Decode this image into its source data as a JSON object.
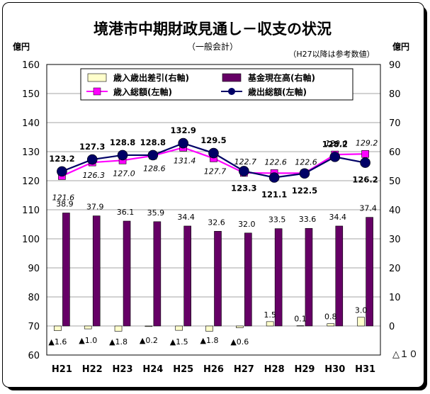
{
  "chart_data": {
    "type": "bar+line",
    "title": "境港市中期財政見通し－収支の状況",
    "subtitle": "（一般会計）",
    "note": "（H27以降は参考数値）",
    "left_axis": {
      "unit_label": "億円",
      "min": 60,
      "max": 160,
      "step": 10
    },
    "right_axis": {
      "unit_label": "億円",
      "min": -10,
      "max": 90,
      "step": 10,
      "bottom_label": "△１０"
    },
    "categories": [
      "H21",
      "H22",
      "H23",
      "H24",
      "H25",
      "H26",
      "H27",
      "H28",
      "H29",
      "H30",
      "H31"
    ],
    "series": [
      {
        "name": "歳入歳出差引(右軸)",
        "kind": "bar",
        "axis": "right",
        "color": "#ffffcc",
        "values": [
          -1.6,
          -1.0,
          -1.8,
          -0.2,
          -1.5,
          -1.8,
          -0.6,
          1.5,
          0.1,
          0.8,
          3.0
        ],
        "labels": [
          "▲1.6",
          "▲1.0",
          "▲1.8",
          "▲0.2",
          "▲1.5",
          "▲1.8",
          "▲0.6",
          "1.5",
          "0.1",
          "0.8",
          "3.0"
        ]
      },
      {
        "name": "基金現在高(右軸)",
        "kind": "bar",
        "axis": "right",
        "color": "#660066",
        "values": [
          38.9,
          37.9,
          36.1,
          35.9,
          34.4,
          32.6,
          32.0,
          33.5,
          33.6,
          34.4,
          37.4
        ],
        "labels": [
          "38.9",
          "37.9",
          "36.1",
          "35.9",
          "34.4",
          "32.6",
          "32.0",
          "33.5",
          "33.6",
          "34.4",
          "37.4"
        ]
      },
      {
        "name": "歳入総額(左軸)",
        "kind": "line",
        "axis": "left",
        "color": "#ff00ff",
        "values": [
          121.6,
          126.3,
          127.0,
          128.6,
          131.4,
          127.7,
          122.7,
          122.6,
          122.6,
          129.0,
          129.2
        ],
        "labels": [
          "121.6",
          "126.3",
          "127.0",
          "128.6",
          "131.4",
          "127.7",
          "122.7",
          "122.6",
          "122.6",
          "129.0",
          "129.2"
        ]
      },
      {
        "name": "歳出総額(左軸)",
        "kind": "line",
        "axis": "left",
        "color": "#000066",
        "values": [
          123.2,
          127.3,
          128.8,
          128.8,
          132.9,
          129.5,
          123.3,
          121.1,
          122.5,
          128.2,
          126.2
        ],
        "labels": [
          "123.2",
          "127.3",
          "128.8",
          "128.8",
          "132.9",
          "129.5",
          "123.3",
          "121.1",
          "122.5",
          "128.2",
          "126.2"
        ]
      }
    ],
    "legend_placement": "top-center",
    "grid": true
  }
}
